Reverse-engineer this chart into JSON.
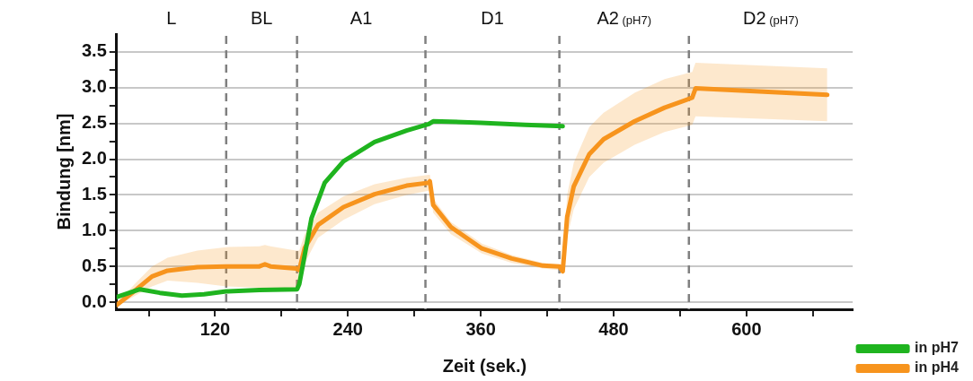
{
  "chart_data": {
    "type": "line",
    "xlabel": "Zeit (sek.)",
    "ylabel": "Bindung [nm]",
    "xlim": [
      31,
      696
    ],
    "ylim": [
      -0.1,
      3.75
    ],
    "xticks": [
      {
        "value": 60,
        "label": null
      },
      120,
      {
        "value": 180,
        "label": null
      },
      240,
      {
        "value": 300,
        "label": null
      },
      360,
      {
        "value": 420,
        "label": null
      },
      480,
      {
        "value": 540,
        "label": null
      },
      600,
      {
        "value": 660,
        "label": null
      }
    ],
    "yticks": [
      {
        "value": 0,
        "label": "0.0"
      },
      {
        "value": 0.25,
        "label": null
      },
      0.5,
      {
        "value": 0.75,
        "label": null
      },
      {
        "value": 1,
        "label": "1.0"
      },
      {
        "value": 1.25,
        "label": null
      },
      1.5,
      {
        "value": 1.75,
        "label": null
      },
      {
        "value": 2,
        "label": "2.0"
      },
      {
        "value": 2.25,
        "label": null
      },
      2.5,
      {
        "value": 2.75,
        "label": null
      },
      {
        "value": 3,
        "label": "3.0"
      },
      {
        "value": 3.25,
        "label": null
      },
      3.5
    ],
    "grid": "y",
    "legend": "bottom right",
    "marker": "none",
    "line_style": "solid",
    "series": [
      {
        "name": "in pH7",
        "color": "#1fb41f",
        "x": [
          31,
          52,
          70,
          90,
          110,
          130,
          160,
          194,
          196,
          200,
          207,
          219,
          236,
          264,
          293,
          313,
          317,
          360,
          400,
          434
        ],
        "values": [
          0.07,
          0.18,
          0.13,
          0.09,
          0.11,
          0.15,
          0.17,
          0.18,
          0.25,
          0.58,
          1.17,
          1.67,
          1.97,
          2.24,
          2.4,
          2.49,
          2.53,
          2.51,
          2.48,
          2.46
        ]
      },
      {
        "name": "in pH4",
        "color": "#f7941d",
        "x": [
          31,
          49,
          63,
          77,
          104,
          130,
          160,
          165,
          170,
          193,
          196,
          201,
          213,
          236,
          264,
          293,
          313,
          314,
          317,
          333,
          361,
          388,
          416,
          431,
          434,
          438,
          444,
          458,
          471,
          499,
          526,
          551,
          554,
          673
        ],
        "values": [
          -0.04,
          0.18,
          0.36,
          0.44,
          0.49,
          0.5,
          0.5,
          0.53,
          0.5,
          0.47,
          0.45,
          0.76,
          1.08,
          1.33,
          1.51,
          1.63,
          1.67,
          1.69,
          1.36,
          1.05,
          0.75,
          0.61,
          0.51,
          0.5,
          0.43,
          1.19,
          1.62,
          2.07,
          2.28,
          2.53,
          2.72,
          2.86,
          2.99,
          2.9
        ],
        "upper": [
          -0.02,
          0.28,
          0.5,
          0.62,
          0.72,
          0.77,
          0.78,
          0.8,
          0.78,
          0.72,
          0.72,
          0.95,
          1.25,
          1.48,
          1.65,
          1.74,
          1.78,
          1.78,
          1.45,
          1.12,
          0.82,
          0.66,
          0.55,
          0.52,
          0.45,
          1.5,
          1.95,
          2.45,
          2.65,
          2.93,
          3.12,
          3.22,
          3.35,
          3.27
        ],
        "lower": [
          -0.06,
          0.1,
          0.22,
          0.3,
          0.27,
          0.22,
          0.2,
          0.2,
          0.2,
          0.2,
          0.2,
          0.55,
          0.9,
          1.15,
          1.37,
          1.5,
          1.56,
          1.6,
          1.25,
          0.95,
          0.68,
          0.55,
          0.47,
          0.45,
          0.4,
          0.9,
          1.3,
          1.75,
          1.95,
          2.2,
          2.38,
          2.48,
          2.6,
          2.53
        ]
      }
    ],
    "ref_lines": [
      {
        "axis": "x",
        "value": 130,
        "color": "#808080",
        "line_style": "dashed"
      },
      {
        "axis": "x",
        "value": 194,
        "color": "#808080",
        "line_style": "dashed"
      },
      {
        "axis": "x",
        "value": 310,
        "color": "#808080",
        "line_style": "dashed"
      },
      {
        "axis": "x",
        "value": 431,
        "color": "#808080",
        "line_style": "dashed"
      },
      {
        "axis": "x",
        "value": 548,
        "color": "#808080",
        "line_style": "dashed"
      }
    ],
    "annotations": [
      "L",
      "BL",
      "A1",
      "D1",
      "A2 (pH7)",
      "D2 (pH7)"
    ]
  }
}
